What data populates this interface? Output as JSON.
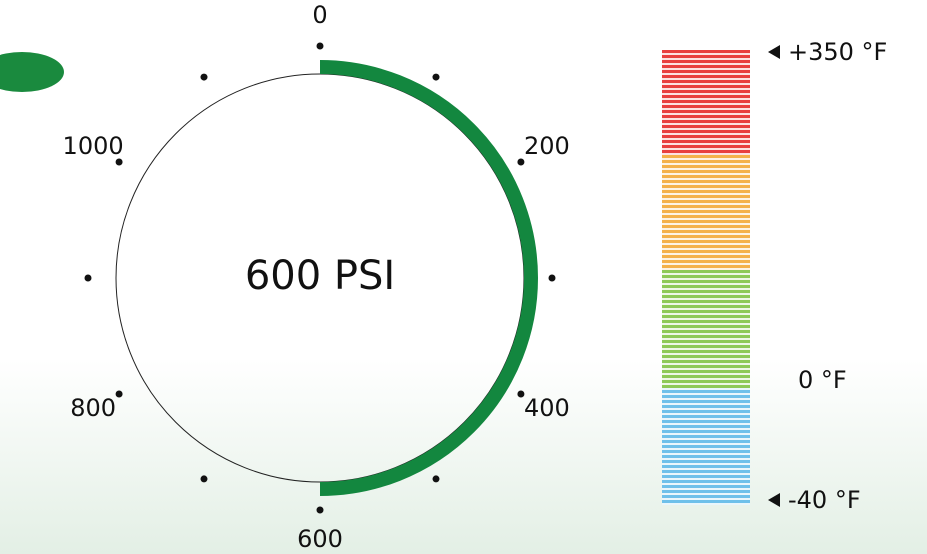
{
  "chart_data": {
    "type": "gauge",
    "value": 600,
    "value_label": "600 PSI",
    "color": "#13873f",
    "lim": [
      0,
      1200
    ],
    "ticks": [
      0,
      200,
      400,
      600,
      800,
      1000
    ],
    "minor_ticks": [
      100,
      300,
      500,
      700,
      900,
      1100
    ]
  },
  "temperature_scale": {
    "bands": [
      "#e8403f",
      "#f4b14a",
      "#8ec957",
      "#6fc0ea"
    ],
    "top_label": "+350 °F",
    "middle_label": "0 °F",
    "bottom_label": "-40 °F"
  }
}
